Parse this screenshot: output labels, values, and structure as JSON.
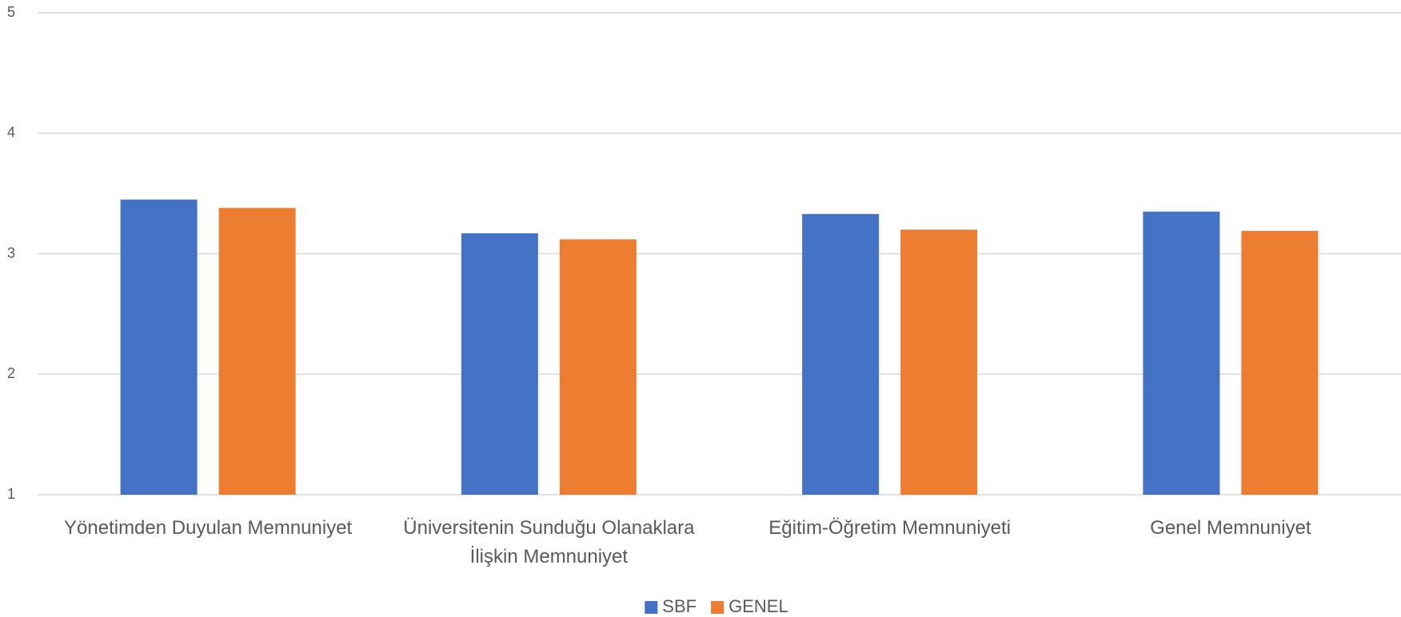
{
  "chart_data": {
    "type": "bar",
    "categories": [
      "Yönetimden Duyulan Memnuniyet",
      "Üniversitenin Sunduğu Olanaklara İlişkin Memnuniyet",
      "Eğitim-Öğretim Memnuniyeti",
      "Genel Memnuniyet"
    ],
    "series": [
      {
        "name": "SBF",
        "color": "#4472c4",
        "values": [
          3.45,
          3.17,
          3.33,
          3.35
        ]
      },
      {
        "name": "GENEL",
        "color": "#ed7d31",
        "values": [
          3.38,
          3.12,
          3.2,
          3.19
        ]
      }
    ],
    "ylim": [
      1,
      5
    ],
    "yticks": [
      1,
      2,
      3,
      4,
      5
    ],
    "grid": true,
    "legend": "bottom"
  }
}
